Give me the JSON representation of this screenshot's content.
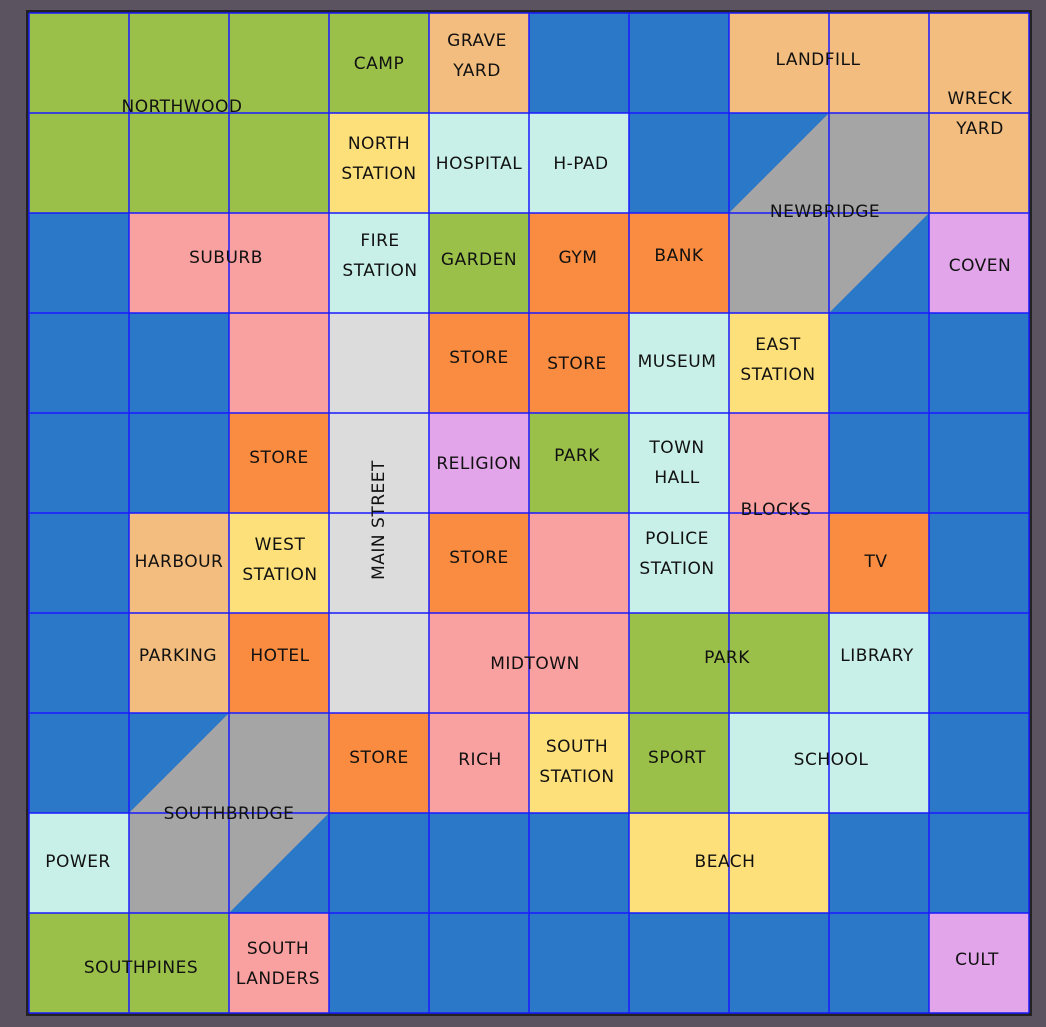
{
  "map": {
    "labels": [
      [
        "NORTHWOOD"
      ],
      [
        "CAMP"
      ],
      [
        "GRAVE",
        "YARD"
      ],
      [
        "LANDFILL"
      ],
      [
        "WRECK",
        "YARD"
      ],
      [
        "NORTH",
        "STATION"
      ],
      [
        "HOSPITAL"
      ],
      [
        "H-PAD"
      ],
      [
        "NEWBRIDGE"
      ],
      [
        "SUBURB"
      ],
      [
        "FIRE",
        "STATION"
      ],
      [
        "GARDEN"
      ],
      [
        "GYM"
      ],
      [
        "BANK"
      ],
      [
        "COVEN"
      ],
      [
        "STORE"
      ],
      [
        "STORE"
      ],
      [
        "MUSEUM"
      ],
      [
        "EAST",
        "STATION"
      ],
      [
        "STORE"
      ],
      [
        "MAIN STREET"
      ],
      [
        "RELIGION"
      ],
      [
        "PARK"
      ],
      [
        "TOWN",
        "HALL"
      ],
      [
        "BLOCKS"
      ],
      [
        "HARBOUR"
      ],
      [
        "WEST",
        "STATION"
      ],
      [
        "STORE"
      ],
      [
        "POLICE",
        "STATION"
      ],
      [
        "TV"
      ],
      [
        "PARKING"
      ],
      [
        "HOTEL"
      ],
      [
        "MIDTOWN"
      ],
      [
        "PARK"
      ],
      [
        "LIBRARY"
      ],
      [
        "STORE"
      ],
      [
        "RICH"
      ],
      [
        "SOUTH",
        "STATION"
      ],
      [
        "SPORT"
      ],
      [
        "SCHOOL"
      ],
      [
        "SOUTHBRIDGE"
      ],
      [
        "POWER"
      ],
      [
        "BEACH"
      ],
      [
        "SOUTHPINES"
      ],
      [
        "SOUTH",
        "LANDERS"
      ],
      [
        "CULT"
      ]
    ]
  }
}
